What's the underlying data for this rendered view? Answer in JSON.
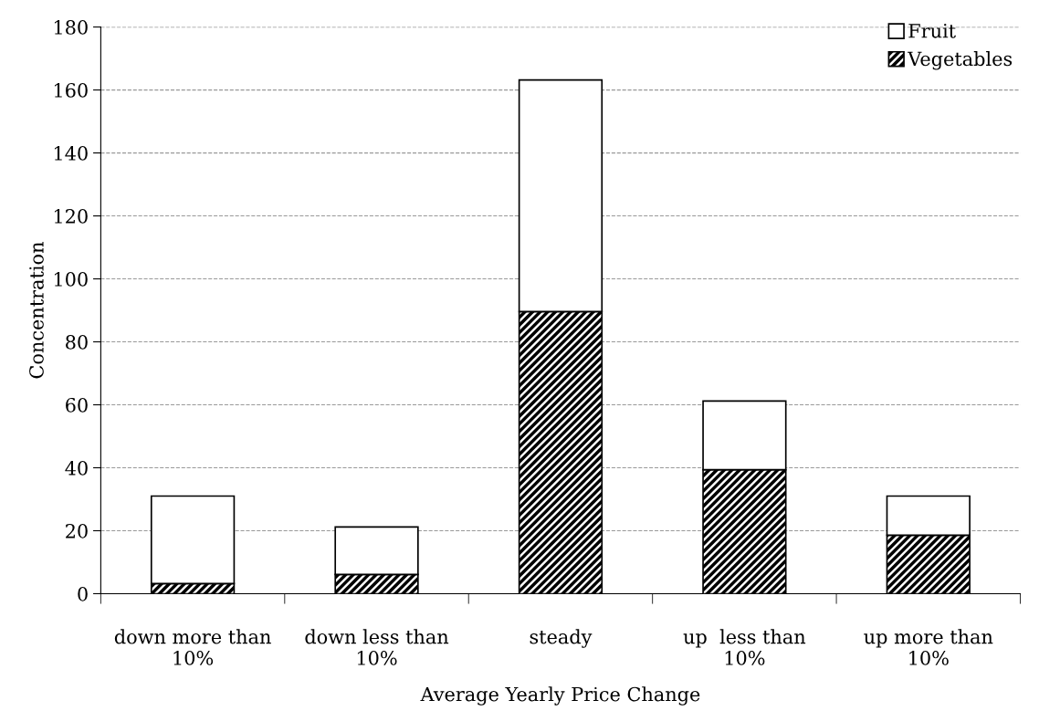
{
  "chart_data": {
    "type": "bar",
    "stacked": true,
    "xlabel": "Average Yearly Price Change",
    "ylabel": "Concentration",
    "categories": [
      "down more than\n10%",
      "down less than\n10%",
      "steady",
      "up  less than\n10%",
      "up more than\n10%"
    ],
    "series": [
      {
        "name": "Vegetables",
        "color": "#000000",
        "values": [
          3.2,
          6.1,
          89.6,
          39.4,
          18.6
        ]
      },
      {
        "name": "Fruit",
        "color": "#ffffff",
        "values": [
          27.8,
          15.1,
          73.6,
          21.8,
          12.4
        ]
      }
    ],
    "ylim": [
      0,
      180
    ],
    "yticks": [
      0,
      20,
      40,
      60,
      80,
      100,
      120,
      140,
      160,
      180
    ],
    "grid": "y",
    "legend": "top right"
  }
}
